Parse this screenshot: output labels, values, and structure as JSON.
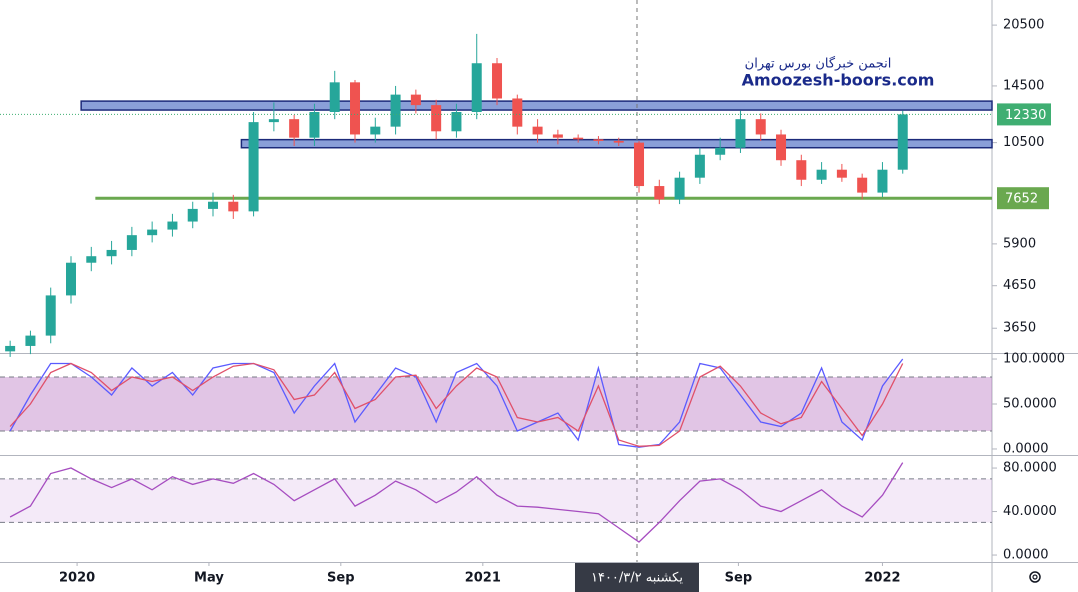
{
  "chart_data": {
    "type": "candlestick",
    "watermark": {
      "line1": "انجمن خبرگان بورس تهران",
      "line2": "Amoozesh-boors.com"
    },
    "candles": {
      "open": [
        3200,
        3300,
        3500,
        4400,
        5300,
        5500,
        5700,
        6200,
        6400,
        6700,
        7200,
        7500,
        7100,
        11800,
        12000,
        10800,
        12500,
        14800,
        11000,
        11500,
        13800,
        13000,
        11200,
        12500,
        16500,
        13500,
        11500,
        11000,
        10800,
        10700,
        10600,
        10500,
        8200,
        7600,
        8600,
        9800,
        10200,
        12000,
        11000,
        9500,
        8500,
        9000,
        8600,
        7900,
        9000
      ],
      "high": [
        3400,
        3600,
        4600,
        5500,
        5800,
        6000,
        6500,
        6700,
        7000,
        7500,
        7900,
        7800,
        12500,
        13200,
        12300,
        13100,
        15800,
        15000,
        12100,
        14500,
        14200,
        13400,
        13100,
        19500,
        17000,
        13800,
        12000,
        11300,
        11000,
        10900,
        10800,
        10600,
        8500,
        8900,
        10200,
        10800,
        12600,
        12400,
        11300,
        9800,
        9400,
        9300,
        8800,
        9400,
        12600
      ],
      "low": [
        3100,
        3150,
        3350,
        4200,
        5050,
        5250,
        5500,
        5950,
        6150,
        6450,
        6900,
        6800,
        6900,
        11200,
        10300,
        10300,
        12000,
        10500,
        10500,
        11000,
        12400,
        10700,
        10800,
        12000,
        13000,
        11000,
        10500,
        10400,
        10500,
        10400,
        10300,
        7900,
        7400,
        7400,
        8300,
        9500,
        9900,
        10600,
        9200,
        8200,
        8300,
        8400,
        7600,
        7700,
        8800
      ],
      "close": [
        3300,
        3500,
        4400,
        5300,
        5500,
        5700,
        6200,
        6400,
        6700,
        7200,
        7500,
        7100,
        11800,
        12000,
        10800,
        12500,
        14800,
        11000,
        11500,
        13800,
        13000,
        11200,
        12500,
        16500,
        13500,
        11500,
        11000,
        10800,
        10700,
        10600,
        10500,
        8200,
        7600,
        8600,
        9800,
        10200,
        12000,
        11000,
        9500,
        8500,
        9000,
        8600,
        7900,
        9000,
        12330
      ]
    },
    "up_color": "#26a69a",
    "down_color": "#ef5350",
    "log_scale": true,
    "ylim": [
      3170,
      23650
    ],
    "yticks": [
      3650,
      4650,
      5900,
      10500,
      14500,
      20500
    ],
    "xlim": [
      -0.5,
      48.4
    ],
    "xticks": [
      {
        "value": 3.3,
        "label": "2020"
      },
      {
        "value": 9.8,
        "label": "May"
      },
      {
        "value": 16.3,
        "label": "Sep"
      },
      {
        "value": 23.3,
        "label": "2021"
      },
      {
        "value": 35.9,
        "label": "Sep"
      },
      {
        "value": 43,
        "label": "2022"
      }
    ],
    "crosshair": {
      "value": 30.9,
      "label": "یکشنبه ۱۴۰۰/۳/۲"
    },
    "zones": [
      {
        "low": 12640,
        "high": 13300,
        "from": 3.5,
        "to": 48.4
      },
      {
        "low": 10200,
        "high": 10680,
        "from": 11.4,
        "to": 48.4
      }
    ],
    "zone_color": "#8a9fd8",
    "support": {
      "value": 7652,
      "from": 4.2,
      "color": "#6aa84f"
    },
    "last_price": {
      "value": 12330,
      "color": "#3fae72"
    },
    "stochastic": {
      "ylim": [
        -6.7,
        106.7
      ],
      "yticks": [
        {
          "value": 100,
          "label": "100.0000"
        },
        {
          "value": 50,
          "label": "50.0000"
        },
        {
          "value": 0,
          "label": "0.0000"
        }
      ],
      "band": [
        20,
        80
      ],
      "series": [
        {
          "color": "#5b5bff",
          "values": [
            20,
            60,
            95,
            95,
            80,
            60,
            90,
            70,
            85,
            60,
            90,
            95,
            95,
            85,
            40,
            70,
            95,
            30,
            60,
            90,
            80,
            30,
            85,
            95,
            70,
            20,
            30,
            40,
            10,
            90,
            5,
            2,
            5,
            30,
            95,
            90,
            60,
            30,
            25,
            40,
            90,
            30,
            10,
            70,
            100
          ]
        },
        {
          "color": "#e0506a",
          "values": [
            25,
            50,
            85,
            95,
            85,
            65,
            80,
            75,
            80,
            65,
            80,
            92,
            95,
            88,
            55,
            60,
            85,
            45,
            55,
            80,
            82,
            45,
            70,
            90,
            80,
            35,
            30,
            35,
            20,
            70,
            10,
            3,
            4,
            20,
            80,
            92,
            70,
            40,
            28,
            35,
            75,
            45,
            15,
            50,
            95
          ]
        }
      ]
    },
    "rsi": {
      "ylim": [
        -6.4,
        92
      ],
      "yticks": [
        {
          "value": 80,
          "label": "80.0000"
        },
        {
          "value": 40,
          "label": "40.0000"
        },
        {
          "value": 0,
          "label": "0.0000"
        }
      ],
      "band": [
        30,
        70
      ],
      "color": "#a64dc0",
      "values": [
        35,
        45,
        75,
        80,
        70,
        62,
        70,
        60,
        72,
        65,
        70,
        66,
        75,
        65,
        50,
        60,
        70,
        45,
        55,
        68,
        60,
        48,
        58,
        72,
        55,
        45,
        44,
        42,
        40,
        38,
        25,
        12,
        30,
        50,
        68,
        70,
        60,
        45,
        40,
        50,
        60,
        45,
        35,
        55,
        85
      ]
    }
  }
}
